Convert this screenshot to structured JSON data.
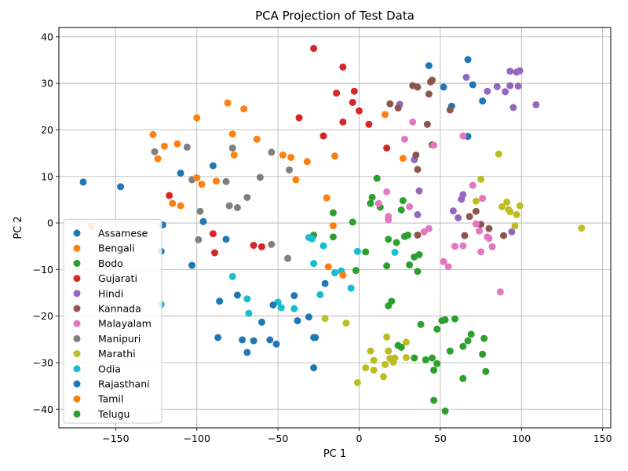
{
  "chart_data": {
    "type": "scatter",
    "title": "PCA Projection of Test Data",
    "xlabel": "PC 1",
    "ylabel": "PC 2",
    "xlim": [
      -185,
      155
    ],
    "ylim": [
      -44,
      42
    ],
    "xticks": [
      -150,
      -100,
      -50,
      0,
      50,
      100,
      150
    ],
    "yticks": [
      -40,
      -30,
      -20,
      -10,
      0,
      10,
      20,
      30,
      40
    ],
    "grid": true,
    "legend_position": "lower-left",
    "series": [
      {
        "name": "Assamese",
        "color": "#1f77b4",
        "points": [
          [
            -170,
            8.8
          ],
          [
            -147,
            7.8
          ],
          [
            -121,
            -0.4
          ],
          [
            -110,
            10.7
          ],
          [
            -96,
            0.3
          ],
          [
            -90,
            12.3
          ],
          [
            -82,
            -3.5
          ],
          [
            52,
            29.2
          ],
          [
            57,
            25.1
          ],
          [
            43,
            33.8
          ],
          [
            67,
            35.1
          ],
          [
            70,
            29.7
          ],
          [
            76,
            26.2
          ],
          [
            67,
            18.6
          ]
        ]
      },
      {
        "name": "Bengali",
        "color": "#ff7f0e",
        "points": [
          [
            -127,
            19.0
          ],
          [
            -124,
            13.8
          ],
          [
            -120,
            16.5
          ],
          [
            -112,
            17.0
          ],
          [
            -110,
            3.7
          ],
          [
            -100,
            22.6
          ],
          [
            -97,
            8.3
          ],
          [
            -88,
            9.0
          ],
          [
            -81,
            25.8
          ],
          [
            -78,
            19.1
          ],
          [
            -77,
            14.6
          ],
          [
            -71,
            24.5
          ],
          [
            -63,
            18.0
          ],
          [
            -47,
            14.6
          ],
          [
            -42,
            14.1
          ],
          [
            -32,
            13.2
          ],
          [
            -15,
            14.4
          ],
          [
            16,
            23.3
          ],
          [
            27,
            13.9
          ]
        ]
      },
      {
        "name": "Bodo",
        "color": "#2ca02c",
        "points": [
          [
            -28,
            -2.6
          ],
          [
            -16,
            2.2
          ],
          [
            -16,
            -3.0
          ],
          [
            -4,
            0.2
          ],
          [
            -2,
            -10.2
          ],
          [
            4,
            -6.2
          ],
          [
            7,
            4.2
          ],
          [
            8,
            5.5
          ],
          [
            11,
            9.6
          ],
          [
            13,
            3.4
          ],
          [
            17,
            -9.2
          ],
          [
            18,
            -3.5
          ],
          [
            20,
            -16.8
          ],
          [
            18,
            -17.8
          ],
          [
            23,
            -4.2
          ],
          [
            26,
            2.8
          ],
          [
            27,
            4.8
          ],
          [
            28,
            -2.9
          ],
          [
            30,
            -2.6
          ],
          [
            31,
            -9.0
          ],
          [
            34,
            -7.3
          ],
          [
            37,
            -6.8
          ],
          [
            36,
            -10.4
          ],
          [
            38,
            -21.8
          ]
        ]
      },
      {
        "name": "Gujarati",
        "color": "#d62728",
        "points": [
          [
            -117,
            5.9
          ],
          [
            -90,
            -2.3
          ],
          [
            -89,
            -6.4
          ],
          [
            -65,
            -4.8
          ],
          [
            -60,
            -5.1
          ],
          [
            -37,
            22.6
          ],
          [
            -28,
            37.5
          ],
          [
            -22,
            18.7
          ],
          [
            -14,
            27.9
          ],
          [
            -10,
            21.7
          ],
          [
            -10,
            33.5
          ],
          [
            -4,
            25.9
          ],
          [
            -3,
            28.3
          ],
          [
            0,
            24.1
          ],
          [
            6,
            21.2
          ],
          [
            17,
            16.1
          ]
        ]
      },
      {
        "name": "Hindi",
        "color": "#9467bd",
        "points": [
          [
            25,
            25.5
          ],
          [
            34,
            13.6
          ],
          [
            36,
            1.8
          ],
          [
            37,
            6.9
          ],
          [
            58,
            2.6
          ],
          [
            61,
            1.1
          ],
          [
            63,
            5.1
          ],
          [
            64,
            6.1
          ],
          [
            66,
            31.3
          ],
          [
            79,
            28.3
          ],
          [
            85,
            29.3
          ],
          [
            90,
            28.2
          ],
          [
            93,
            32.6
          ],
          [
            93,
            29.5
          ],
          [
            94,
            -1.9
          ],
          [
            95,
            24.8
          ],
          [
            97,
            32.4
          ],
          [
            98,
            29.4
          ],
          [
            99,
            32.7
          ],
          [
            109,
            25.4
          ]
        ]
      },
      {
        "name": "Kannada",
        "color": "#8c564b",
        "points": [
          [
            19,
            25.6
          ],
          [
            24,
            24.7
          ],
          [
            33,
            29.5
          ],
          [
            35,
            14.6
          ],
          [
            36,
            11.5
          ],
          [
            36,
            29.2
          ],
          [
            36,
            -2.6
          ],
          [
            42,
            21.2
          ],
          [
            43,
            27.7
          ],
          [
            44,
            30.3
          ],
          [
            45,
            30.7
          ],
          [
            45,
            16.8
          ],
          [
            56,
            24.3
          ],
          [
            65,
            -2.7
          ],
          [
            68,
            1.4
          ],
          [
            72,
            2.5
          ],
          [
            75,
            -0.3
          ],
          [
            80,
            -1.2
          ],
          [
            89,
            -2.7
          ]
        ]
      },
      {
        "name": "Malayalam",
        "color": "#e377c2",
        "points": [
          [
            12,
            4.2
          ],
          [
            17,
            6.7
          ],
          [
            18,
            1.4
          ],
          [
            18,
            0.7
          ],
          [
            28,
            18.0
          ],
          [
            31,
            3.5
          ],
          [
            33,
            21.7
          ],
          [
            40,
            -1.9
          ],
          [
            43,
            -1.2
          ],
          [
            46,
            16.7
          ],
          [
            52,
            -8.3
          ],
          [
            55,
            -9.4
          ],
          [
            59,
            -5.0
          ],
          [
            64,
            -4.9
          ],
          [
            64,
            18.7
          ],
          [
            70,
            8.1
          ],
          [
            72,
            -0.2
          ],
          [
            74,
            -1.7
          ],
          [
            75,
            -6.2
          ],
          [
            76,
            5.3
          ],
          [
            79,
            -3.0
          ],
          [
            80,
            -3.3
          ],
          [
            82,
            -5.1
          ],
          [
            87,
            -14.8
          ]
        ]
      },
      {
        "name": "Manipuri",
        "color": "#7f7f7f",
        "points": [
          [
            -126,
            15.3
          ],
          [
            -106,
            16.3
          ],
          [
            -103,
            9.3
          ],
          [
            -99,
            -3.6
          ],
          [
            -98,
            2.5
          ],
          [
            -82,
            8.9
          ],
          [
            -80,
            3.7
          ],
          [
            -78,
            16.1
          ],
          [
            -75,
            3.3
          ],
          [
            -69,
            5.5
          ],
          [
            -61,
            9.8
          ],
          [
            -54,
            15.2
          ],
          [
            -54,
            -4.6
          ],
          [
            -44,
            -7.6
          ],
          [
            -43,
            11.4
          ]
        ]
      },
      {
        "name": "Marathi",
        "color": "#bcbd22",
        "points": [
          [
            -21,
            -20.5
          ],
          [
            -8,
            -21.5
          ],
          [
            -1,
            -34.3
          ],
          [
            4,
            -31.1
          ],
          [
            7,
            -27.5
          ],
          [
            9,
            -29.5
          ],
          [
            9,
            -31.6
          ],
          [
            15,
            -33.0
          ],
          [
            16,
            -30.4
          ],
          [
            17,
            -24.5
          ],
          [
            18,
            -27.5
          ],
          [
            19,
            -29.1
          ],
          [
            21,
            -29.9
          ],
          [
            22,
            -29.0
          ],
          [
            29,
            -25.6
          ],
          [
            29,
            -28.9
          ],
          [
            75,
            9.4
          ],
          [
            86,
            14.8
          ],
          [
            72,
            4.7
          ],
          [
            88,
            3.5
          ],
          [
            91,
            4.5
          ],
          [
            92,
            2.9
          ],
          [
            93,
            2.4
          ],
          [
            96,
            -0.6
          ],
          [
            97,
            1.8
          ],
          [
            99,
            3.7
          ],
          [
            137,
            -1.1
          ]
        ]
      },
      {
        "name": "Odia",
        "color": "#17becf",
        "points": [
          [
            -122,
            -17.5
          ],
          [
            -78,
            -11.5
          ],
          [
            -69,
            -16.3
          ],
          [
            -68,
            -19.4
          ],
          [
            -50,
            -17.0
          ],
          [
            -48,
            -18.2
          ],
          [
            -40,
            -18.4
          ],
          [
            -31,
            -3.1
          ],
          [
            -29,
            -3.4
          ],
          [
            -28,
            -8.7
          ],
          [
            -24,
            -15.4
          ],
          [
            -22,
            -4.9
          ],
          [
            -15,
            -10.7
          ],
          [
            -11,
            -10.3
          ],
          [
            -5,
            -14.0
          ],
          [
            -1,
            -6.1
          ],
          [
            22,
            -6.3
          ]
        ]
      },
      {
        "name": "Rajasthani",
        "color": "#1f77b4",
        "points": [
          [
            -122,
            -6.1
          ],
          [
            -103,
            -9.1
          ],
          [
            -87,
            -24.6
          ],
          [
            -86,
            -16.8
          ],
          [
            -75,
            -15.5
          ],
          [
            -72,
            -25.1
          ],
          [
            -69,
            -27.8
          ],
          [
            -65,
            -25.3
          ],
          [
            -60,
            -21.3
          ],
          [
            -55,
            -25.1
          ],
          [
            -53,
            -17.6
          ],
          [
            -51,
            -26.0
          ],
          [
            -40,
            -15.6
          ],
          [
            -38,
            -21.0
          ],
          [
            -31,
            -20.2
          ],
          [
            -28,
            -24.6
          ],
          [
            -27,
            -24.6
          ],
          [
            -28,
            -31.1
          ],
          [
            -21,
            -13.0
          ]
        ]
      },
      {
        "name": "Tamil",
        "color": "#ff7f0e",
        "points": [
          [
            -165,
            -0.7
          ],
          [
            -133,
            -2.5
          ],
          [
            -115,
            4.2
          ],
          [
            -100,
            9.7
          ],
          [
            -39,
            9.3
          ],
          [
            -20,
            5.4
          ],
          [
            -19,
            -9.4
          ],
          [
            -16,
            -0.6
          ],
          [
            -10,
            -11.2
          ]
        ]
      },
      {
        "name": "Telugu",
        "color": "#2ca02c",
        "points": [
          [
            24,
            -26.3
          ],
          [
            26,
            -26.7
          ],
          [
            34,
            -29.0
          ],
          [
            41,
            -29.4
          ],
          [
            45,
            -29.0
          ],
          [
            46,
            -31.6
          ],
          [
            46,
            -38.1
          ],
          [
            48,
            -22.8
          ],
          [
            48,
            -30.2
          ],
          [
            51,
            -21.0
          ],
          [
            53,
            -20.8
          ],
          [
            53,
            -40.4
          ],
          [
            56,
            -27.5
          ],
          [
            59,
            -20.6
          ],
          [
            64,
            -26.5
          ],
          [
            64,
            -33.4
          ],
          [
            67,
            -25.3
          ],
          [
            69,
            -23.9
          ],
          [
            76,
            -28.2
          ],
          [
            77,
            -24.8
          ],
          [
            78,
            -31.9
          ]
        ]
      }
    ]
  }
}
